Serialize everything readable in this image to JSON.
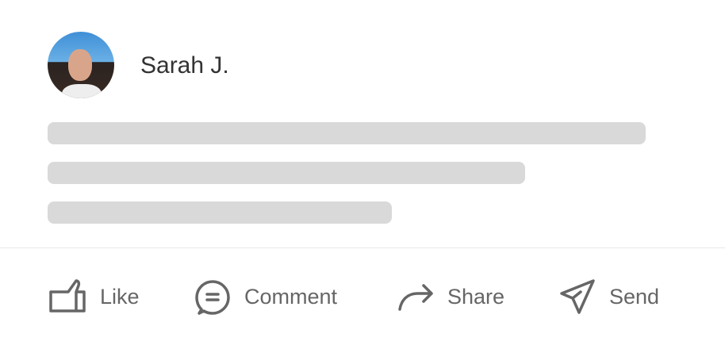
{
  "post": {
    "author": "Sarah J."
  },
  "actions": [
    {
      "label": "Like",
      "icon": "thumbs-up-icon"
    },
    {
      "label": "Comment",
      "icon": "comment-icon"
    },
    {
      "label": "Share",
      "icon": "share-arrow-icon"
    },
    {
      "label": "Send",
      "icon": "paper-plane-icon"
    }
  ],
  "colors": {
    "skeleton": "#d9d9d9",
    "action": "#666666",
    "name": "#333333"
  }
}
